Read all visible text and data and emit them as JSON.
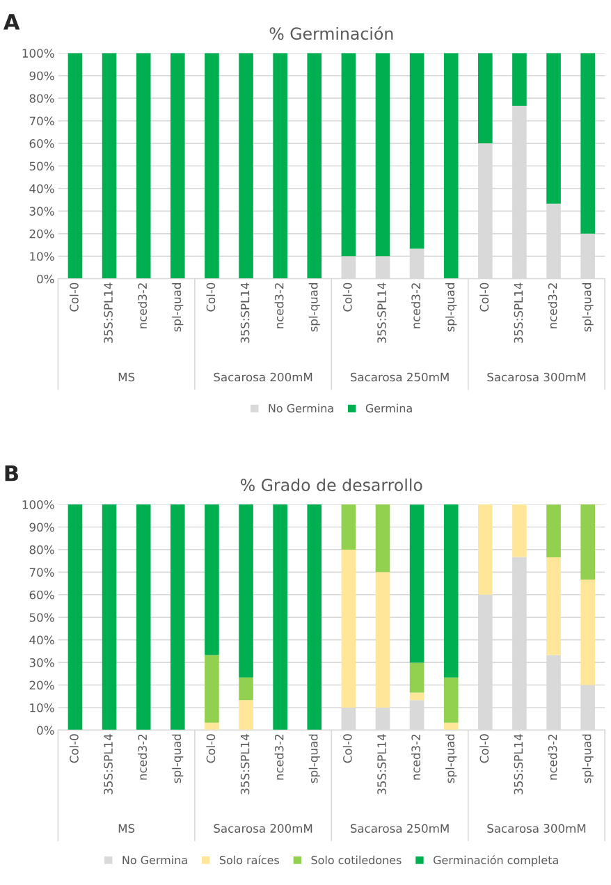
{
  "chart_data": [
    {
      "type": "bar",
      "title": "% Germinación",
      "stacked": true,
      "grid": "y",
      "legend": "bottom",
      "categories": [
        "Col-0",
        "35S:SPL14",
        "nced3-2",
        "spl-quad",
        "Col-0",
        "35S:SPL14",
        "nced3-2",
        "spl-quad",
        "Col-0",
        "35S:SPL14",
        "nced3-2",
        "spl-quad",
        "Col-0",
        "35S:SPL14",
        "nced3-2",
        "spl-quad"
      ],
      "annotations": [
        "A",
        "MS",
        "Sacarosa 200mM",
        "Sacarosa 250mM",
        "Sacarosa 300mM"
      ],
      "ylim": [
        0,
        100
      ],
      "yticks": [
        {
          "value": 0,
          "label": "0%"
        },
        {
          "value": 10,
          "label": "10%"
        },
        {
          "value": 20,
          "label": "20%"
        },
        {
          "value": 30,
          "label": "30%"
        },
        {
          "value": 40,
          "label": "40%"
        },
        {
          "value": 50,
          "label": "50%"
        },
        {
          "value": 60,
          "label": "60%"
        },
        {
          "value": 70,
          "label": "70%"
        },
        {
          "value": 80,
          "label": "80%"
        },
        {
          "value": 90,
          "label": "90%"
        },
        {
          "value": 100,
          "label": "100%"
        }
      ],
      "series": [
        {
          "name": "No Germina",
          "color": "#d9d9d9",
          "values": [
            0,
            0,
            0,
            0,
            0,
            0,
            0,
            0,
            10,
            10,
            13.3,
            0,
            60,
            76.7,
            33.3,
            20
          ]
        },
        {
          "name": "Germina",
          "color": "#00b050",
          "values": [
            100,
            100,
            100,
            100,
            100,
            100,
            100,
            100,
            90,
            90,
            86.7,
            100,
            40,
            23.3,
            66.7,
            80
          ]
        }
      ]
    },
    {
      "type": "bar",
      "title": "% Grado de desarrollo",
      "stacked": true,
      "grid": "y",
      "legend": "bottom",
      "categories": [
        "Col-0",
        "35S:SPL14",
        "nced3-2",
        "spl-quad",
        "Col-0",
        "35S:SPL14",
        "nced3-2",
        "spl-quad",
        "Col-0",
        "35S:SPL14",
        "nced3-2",
        "spl-quad",
        "Col-0",
        "35S:SPL14",
        "nced3-2",
        "spl-quad"
      ],
      "annotations": [
        "B",
        "MS",
        "Sacarosa 200mM",
        "Sacarosa 250mM",
        "Sacarosa 300mM"
      ],
      "ylim": [
        0,
        100
      ],
      "yticks": [
        {
          "value": 0,
          "label": "0%"
        },
        {
          "value": 10,
          "label": "10%"
        },
        {
          "value": 20,
          "label": "20%"
        },
        {
          "value": 30,
          "label": "30%"
        },
        {
          "value": 40,
          "label": "40%"
        },
        {
          "value": 50,
          "label": "50%"
        },
        {
          "value": 60,
          "label": "60%"
        },
        {
          "value": 70,
          "label": "70%"
        },
        {
          "value": 80,
          "label": "80%"
        },
        {
          "value": 90,
          "label": "90%"
        },
        {
          "value": 100,
          "label": "100%"
        }
      ],
      "series": [
        {
          "name": "No Germina",
          "color": "#d9d9d9",
          "values": [
            0,
            0,
            0,
            0,
            0,
            0,
            0,
            0,
            10,
            10,
            13.3,
            0,
            60,
            76.7,
            33.3,
            20
          ]
        },
        {
          "name": "Solo raíces",
          "color": "#ffe699",
          "values": [
            0,
            0,
            0,
            0,
            3.3,
            13.3,
            0,
            0,
            70,
            60,
            3.3,
            3.3,
            40,
            23.3,
            43.3,
            46.7
          ]
        },
        {
          "name": "Solo cotiledones",
          "color": "#92d050",
          "values": [
            0,
            0,
            0,
            0,
            30,
            10,
            0,
            0,
            20,
            30,
            13.3,
            20,
            0,
            0,
            23.3,
            33.3
          ]
        },
        {
          "name": "Germinación completa",
          "color": "#00b050",
          "values": [
            100,
            100,
            100,
            100,
            66.7,
            76.7,
            100,
            100,
            0,
            0,
            70,
            76.7,
            0,
            0,
            0,
            0
          ]
        }
      ]
    }
  ]
}
